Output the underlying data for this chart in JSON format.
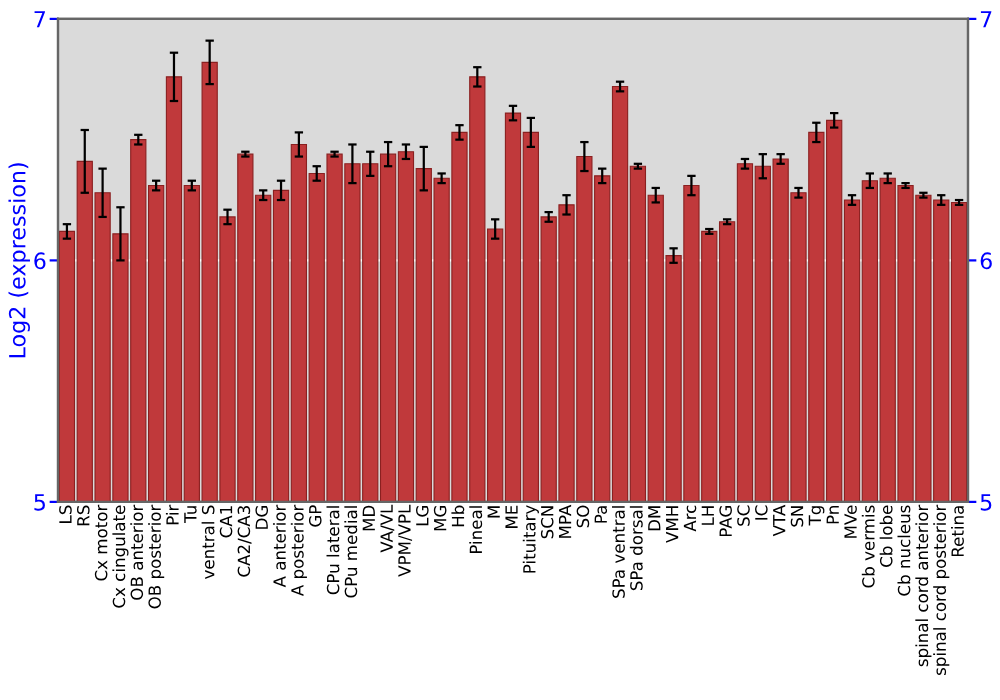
{
  "chart_data": {
    "type": "bar",
    "ylabel": "Log2 (expression)",
    "categories": [
      "LS",
      "RS",
      "Cx motor",
      "Cx cingulate",
      "OB anterior",
      "OB posterior",
      "Pir",
      "Tu",
      "ventral S",
      "CA1",
      "CA2/CA3",
      "DG",
      "A anterior",
      "A posterior",
      "GP",
      "CPu lateral",
      "CPu medial",
      "MD",
      "VA/VL",
      "VPM/VPL",
      "LG",
      "MG",
      "Hb",
      "Pineal",
      "M",
      "ME",
      "Pituitary",
      "SCN",
      "MPA",
      "SO",
      "Pa",
      "SPa ventral",
      "SPa dorsal",
      "DM",
      "VMH",
      "Arc",
      "LH",
      "PAG",
      "SC",
      "IC",
      "VTA",
      "SN",
      "Tg",
      "Pn",
      "MVe",
      "Cb vermis",
      "Cb lobe",
      "Cb nucleus",
      "spinal cord anterior",
      "spinal cord posterior",
      "Retina"
    ],
    "values": [
      6.12,
      6.41,
      6.28,
      6.11,
      6.5,
      6.31,
      6.76,
      6.31,
      6.82,
      6.18,
      6.44,
      6.27,
      6.29,
      6.48,
      6.36,
      6.44,
      6.4,
      6.4,
      6.44,
      6.45,
      6.38,
      6.34,
      6.53,
      6.76,
      6.13,
      6.61,
      6.53,
      6.18,
      6.23,
      6.43,
      6.35,
      6.72,
      6.39,
      6.27,
      6.02,
      6.31,
      6.12,
      6.16,
      6.4,
      6.39,
      6.42,
      6.28,
      6.53,
      6.58,
      6.25,
      6.33,
      6.34,
      6.31,
      6.27,
      6.25,
      6.24
    ],
    "errors": [
      0.03,
      0.13,
      0.1,
      0.11,
      0.02,
      0.02,
      0.1,
      0.02,
      0.09,
      0.03,
      0.01,
      0.02,
      0.04,
      0.05,
      0.03,
      0.01,
      0.08,
      0.05,
      0.05,
      0.03,
      0.09,
      0.02,
      0.03,
      0.04,
      0.04,
      0.03,
      0.06,
      0.02,
      0.04,
      0.06,
      0.03,
      0.02,
      0.01,
      0.03,
      0.03,
      0.04,
      0.01,
      0.01,
      0.02,
      0.05,
      0.02,
      0.02,
      0.04,
      0.03,
      0.02,
      0.03,
      0.02,
      0.01,
      0.01,
      0.02,
      0.01
    ],
    "color": "#c0393b",
    "ylim": [
      5,
      7
    ],
    "yticks": [
      5,
      6,
      7
    ],
    "y2lim": [
      5,
      7
    ],
    "y2ticks": [
      5,
      6,
      7
    ],
    "grid": "y"
  }
}
